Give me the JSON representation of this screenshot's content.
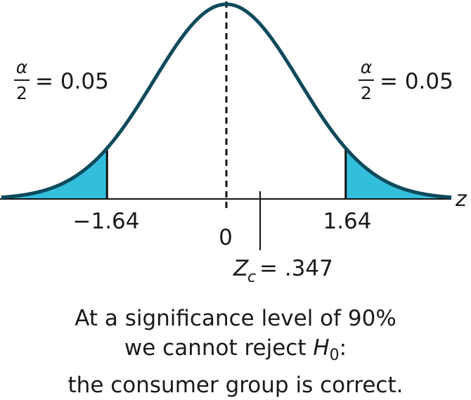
{
  "colors": {
    "curve": "#0d4a5c",
    "tail_fill": "#33bedc",
    "axis": "#111111",
    "text": "#1a1a1a"
  },
  "axis": {
    "variable_label": "z"
  },
  "alpha_labels": {
    "left": {
      "numerator": "α",
      "denominator": "2",
      "value": "= 0.05"
    },
    "right": {
      "numerator": "α",
      "denominator": "2",
      "value": "= 0.05"
    }
  },
  "ticks": {
    "left_critical": "−1.64",
    "center": "0",
    "right_critical": "1.64"
  },
  "critical_values": [
    -1.64,
    1.64
  ],
  "test_statistic": {
    "symbol": "Z",
    "subscript": "c",
    "value_text": "= .347",
    "value": 0.347
  },
  "caption": {
    "line1": "At a significance level of 90%",
    "line2_prefix": "we cannot reject ",
    "line2_symbol": "H",
    "line2_subscript": "0",
    "line2_suffix": ":",
    "line3": "the consumer group is correct."
  }
}
